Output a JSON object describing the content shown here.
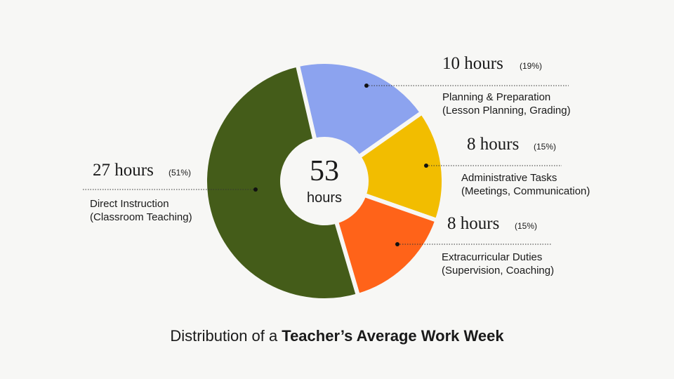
{
  "chart_data": {
    "type": "donut",
    "title_prefix": "Distribution of a",
    "title_emphasis": "Teacher’s Average Work Week",
    "total": 53,
    "total_unit": "hours",
    "categories": [
      "Planning & Preparation",
      "Administrative Tasks",
      "Extracurricular Duties",
      "Direct Instruction"
    ],
    "details": [
      "(Lesson Planning, Grading)",
      "(Meetings, Communication)",
      "(Supervision, Coaching)",
      "(Classroom Teaching)"
    ],
    "values": [
      10,
      8,
      8,
      27
    ],
    "value_labels": [
      "10 hours",
      "8 hours",
      "8 hours",
      "27 hours"
    ],
    "percent_labels": [
      "(19%)",
      "(15%)",
      "(15%)",
      "(51%)"
    ],
    "colors": [
      "#8ca3ef",
      "#f2bd00",
      "#ff6319",
      "#445c19"
    ]
  }
}
